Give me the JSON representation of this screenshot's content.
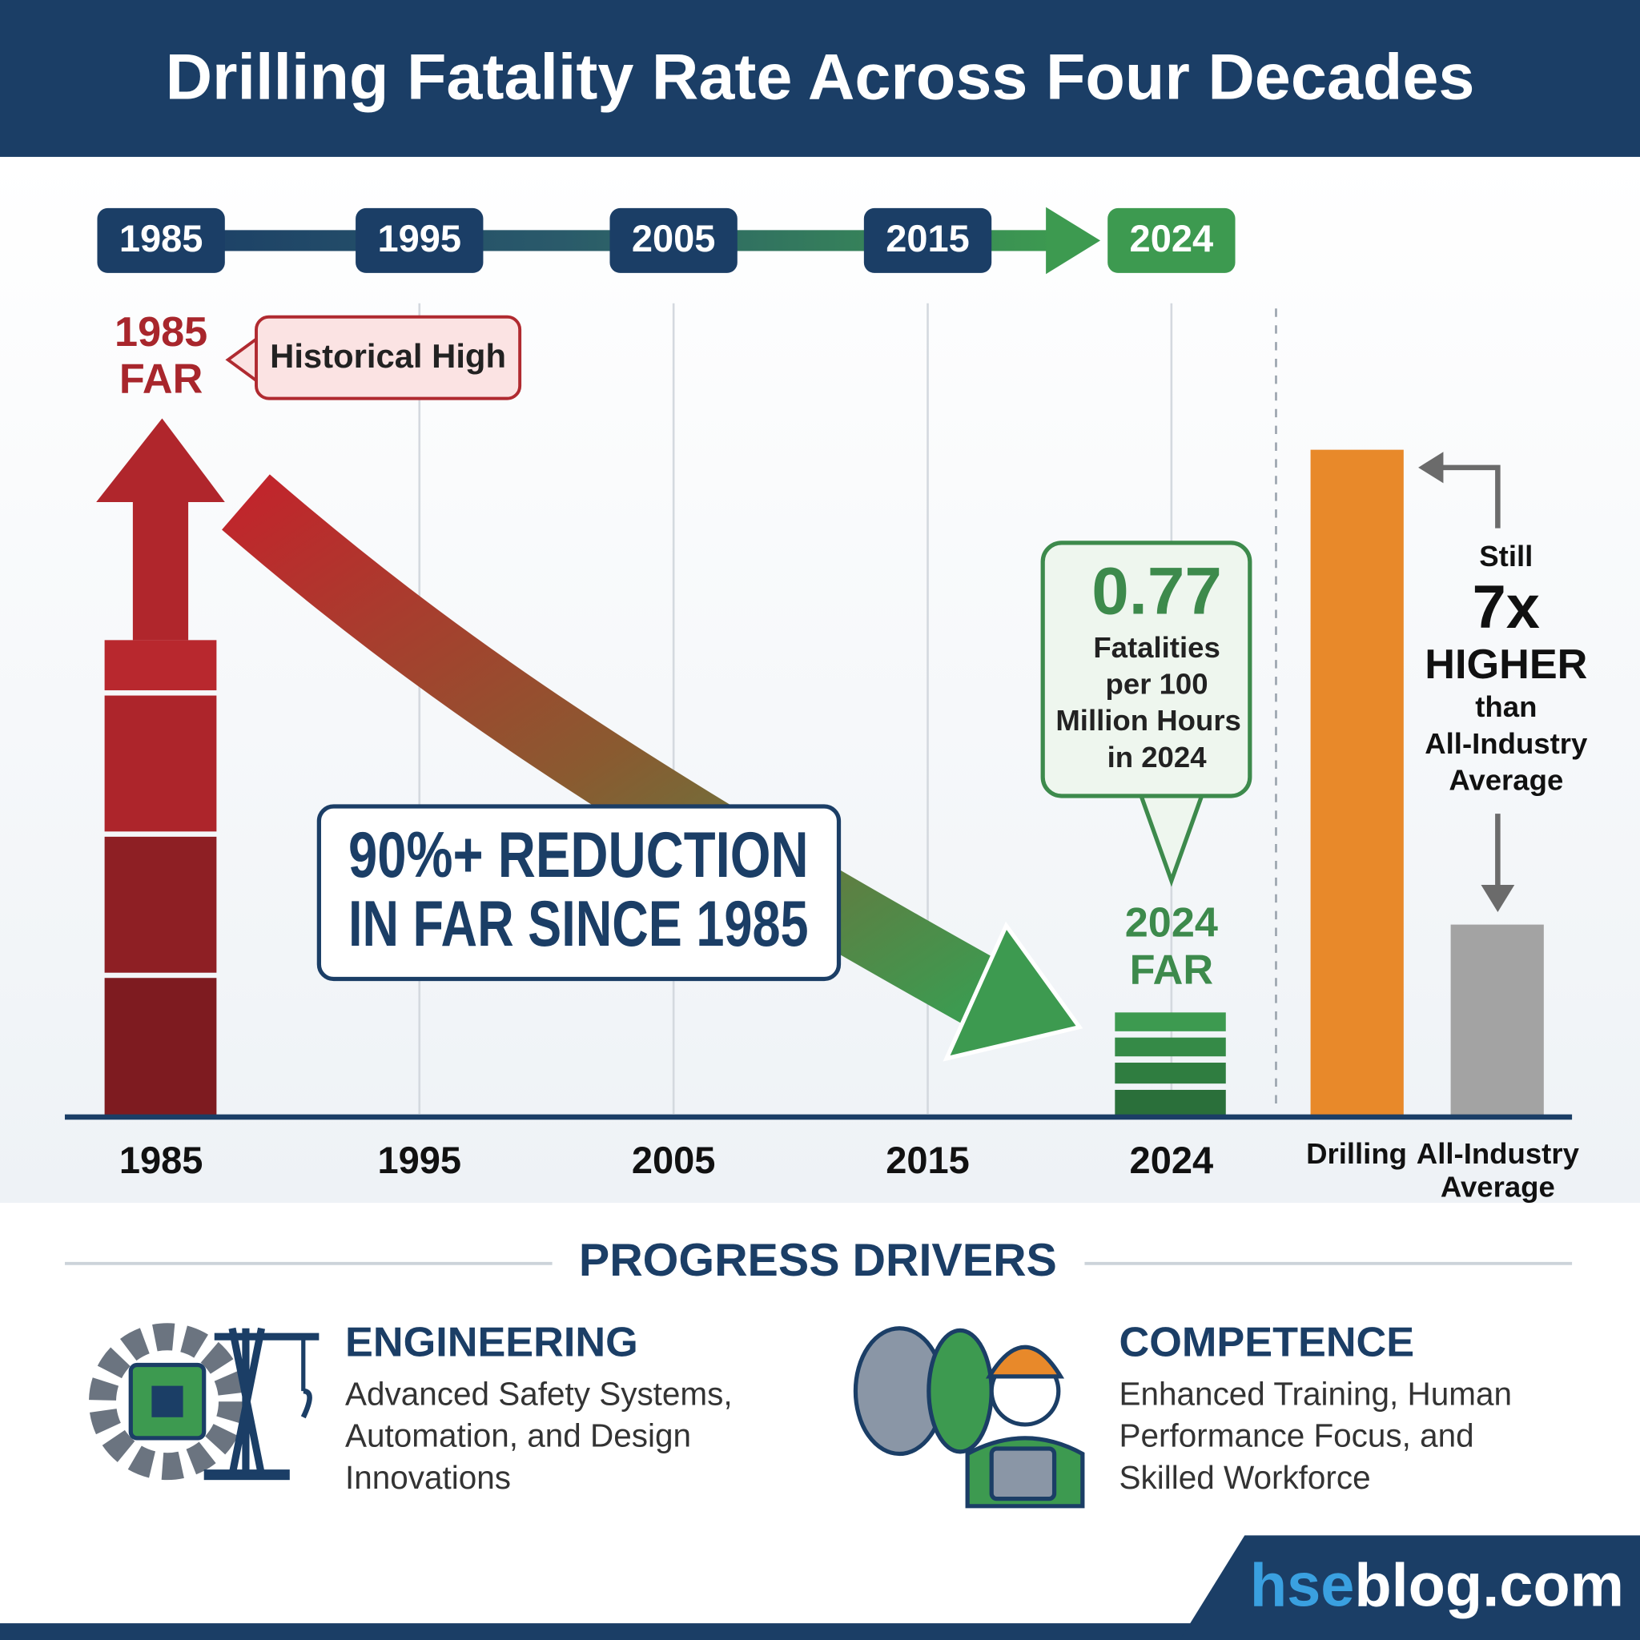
{
  "header": {
    "title": "Drilling Fatality Rate Across Four Decades"
  },
  "timeline": [
    "1985",
    "1995",
    "2005",
    "2015",
    "2024"
  ],
  "start_label": [
    "1985",
    "FAR"
  ],
  "historical_callout": "Historical High",
  "reduction_callout": [
    "90%+ REDUCTION",
    "IN FAR SINCE 1985"
  ],
  "rate_callout": {
    "value": "0.77",
    "lines": [
      "Fatalities",
      "per 100",
      "Million Hours",
      "in 2024"
    ]
  },
  "end_label": [
    "2024",
    "FAR"
  ],
  "comparison_note": [
    "Still",
    "7x",
    "HIGHER",
    "than",
    "All-Industry",
    "Average"
  ],
  "x_labels": [
    "1985",
    "1995",
    "2005",
    "2015",
    "2024"
  ],
  "bar_labels": {
    "drilling": "Drilling",
    "all_industry": [
      "All-Industry",
      "Average"
    ]
  },
  "drivers": {
    "title": "PROGRESS DRIVERS",
    "items": [
      {
        "title": "ENGINEERING",
        "lines": [
          "Advanced Safety Systems,",
          "Automation, and Design",
          "Innovations"
        ]
      },
      {
        "title": "COMPETENCE",
        "lines": [
          "Enhanced Training, Human",
          "Performance Focus, and",
          "Skilled Workforce"
        ]
      }
    ]
  },
  "brand": {
    "prefix": "hse",
    "rest": "blog.com"
  }
}
